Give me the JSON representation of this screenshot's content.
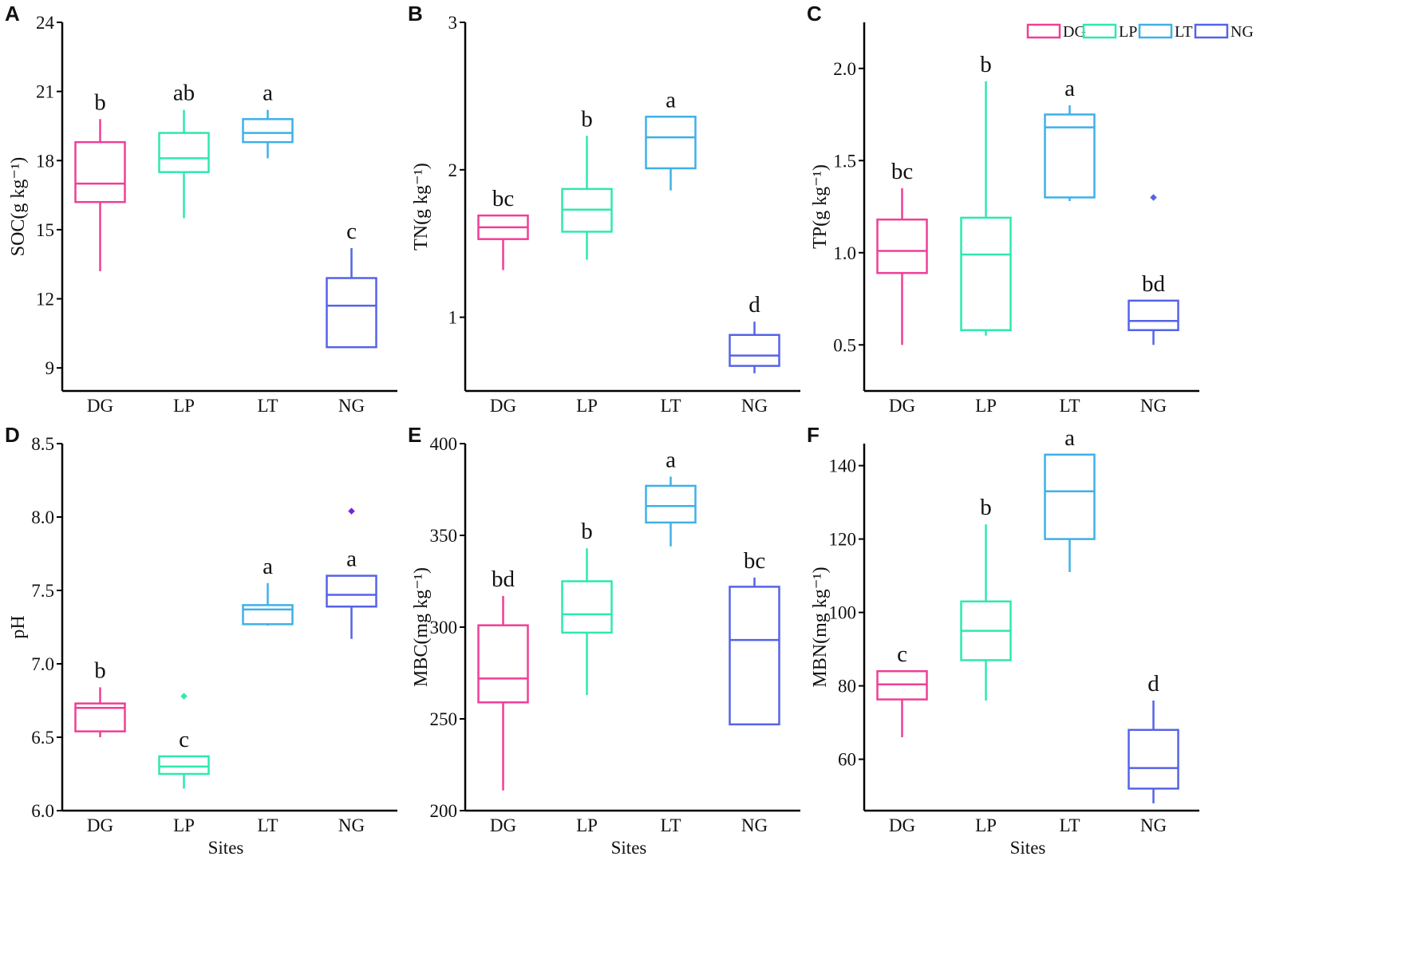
{
  "colors": {
    "DG": "#ef3f97",
    "LP": "#2ee8b0",
    "LT": "#3fb0e8",
    "NG": "#5563e8"
  },
  "legend": [
    "DG",
    "LP",
    "LT",
    "NG"
  ],
  "chart_data": [
    {
      "type": "box",
      "panel": "A",
      "ylabel": "SOC(g kg⁻¹)",
      "xlabel": "",
      "categories": [
        "DG",
        "LP",
        "LT",
        "NG"
      ],
      "ylim": [
        8,
        24
      ],
      "yticks": [
        9,
        12,
        15,
        18,
        21,
        24
      ],
      "tick_decimals": 0,
      "boxes": [
        {
          "min": 13.2,
          "q1": 16.2,
          "median": 17.0,
          "q3": 18.8,
          "max": 19.8,
          "letter": "b"
        },
        {
          "min": 15.5,
          "q1": 17.5,
          "median": 18.1,
          "q3": 19.2,
          "max": 20.2,
          "letter": "ab"
        },
        {
          "min": 18.1,
          "q1": 18.8,
          "median": 19.2,
          "q3": 19.8,
          "max": 20.2,
          "letter": "a"
        },
        {
          "min": 9.9,
          "q1": 9.9,
          "median": 11.7,
          "q3": 12.9,
          "max": 14.2,
          "letter": "c"
        }
      ]
    },
    {
      "type": "box",
      "panel": "B",
      "ylabel": "TN(g kg⁻¹)",
      "xlabel": "",
      "categories": [
        "DG",
        "LP",
        "LT",
        "NG"
      ],
      "ylim": [
        0.5,
        3
      ],
      "yticks": [
        1,
        2,
        3
      ],
      "tick_decimals": 0,
      "boxes": [
        {
          "min": 1.32,
          "q1": 1.53,
          "median": 1.61,
          "q3": 1.69,
          "max": 1.69,
          "letter": "bc"
        },
        {
          "min": 1.39,
          "q1": 1.58,
          "median": 1.73,
          "q3": 1.87,
          "max": 2.23,
          "letter": "b"
        },
        {
          "min": 1.86,
          "q1": 2.01,
          "median": 2.22,
          "q3": 2.36,
          "max": 2.36,
          "letter": "a"
        },
        {
          "min": 0.62,
          "q1": 0.67,
          "median": 0.74,
          "q3": 0.88,
          "max": 0.97,
          "letter": "d"
        }
      ]
    },
    {
      "type": "box",
      "panel": "C",
      "ylabel": "TP(g kg⁻¹)",
      "xlabel": "",
      "categories": [
        "DG",
        "LP",
        "LT",
        "NG"
      ],
      "ylim": [
        0.25,
        2.25
      ],
      "yticks": [
        0.5,
        1.0,
        1.5,
        2.0
      ],
      "tick_decimals": 1,
      "legend": "top-right",
      "boxes": [
        {
          "min": 0.5,
          "q1": 0.89,
          "median": 1.01,
          "q3": 1.18,
          "max": 1.35,
          "letter": "bc"
        },
        {
          "min": 0.55,
          "q1": 0.58,
          "median": 0.99,
          "q3": 1.19,
          "max": 1.93,
          "letter": "b"
        },
        {
          "min": 1.28,
          "q1": 1.3,
          "median": 1.68,
          "q3": 1.75,
          "max": 1.8,
          "letter": "a"
        },
        {
          "min": 0.5,
          "q1": 0.58,
          "median": 0.63,
          "q3": 0.74,
          "max": 0.74,
          "outliers": [
            1.3
          ],
          "letter": "bd"
        }
      ]
    },
    {
      "type": "box",
      "panel": "D",
      "ylabel": "pH",
      "xlabel": "Sites",
      "categories": [
        "DG",
        "LP",
        "LT",
        "NG"
      ],
      "ylim": [
        6,
        8.5
      ],
      "yticks": [
        6.0,
        6.5,
        7.0,
        7.5,
        8.0,
        8.5
      ],
      "tick_decimals": 1,
      "boxes": [
        {
          "min": 6.5,
          "q1": 6.54,
          "median": 6.7,
          "q3": 6.73,
          "max": 6.84,
          "letter": "b"
        },
        {
          "min": 6.15,
          "q1": 6.25,
          "median": 6.3,
          "q3": 6.37,
          "max": 6.37,
          "outliers": [
            6.78
          ],
          "letter": "c"
        },
        {
          "min": 7.26,
          "q1": 7.27,
          "median": 7.37,
          "q3": 7.4,
          "max": 7.55,
          "letter": "a"
        },
        {
          "min": 7.17,
          "q1": 7.39,
          "median": 7.47,
          "q3": 7.6,
          "max": 7.6,
          "outliers": [
            8.04
          ],
          "letter": "a"
        }
      ]
    },
    {
      "type": "box",
      "panel": "E",
      "ylabel": "MBC(mg kg⁻¹)",
      "xlabel": "Sites",
      "categories": [
        "DG",
        "LP",
        "LT",
        "NG"
      ],
      "ylim": [
        200,
        400
      ],
      "yticks": [
        200,
        250,
        300,
        350,
        400
      ],
      "tick_decimals": 0,
      "boxes": [
        {
          "min": 211,
          "q1": 259,
          "median": 272,
          "q3": 301,
          "max": 317,
          "letter": "bd"
        },
        {
          "min": 263,
          "q1": 297,
          "median": 307,
          "q3": 325,
          "max": 343,
          "letter": "b"
        },
        {
          "min": 344,
          "q1": 357,
          "median": 366,
          "q3": 377,
          "max": 382,
          "letter": "a"
        },
        {
          "min": 247,
          "q1": 247,
          "median": 293,
          "q3": 322,
          "max": 327,
          "letter": "bc"
        }
      ]
    },
    {
      "type": "box",
      "panel": "F",
      "ylabel": "MBN(mg kg⁻¹)",
      "xlabel": "Sites",
      "categories": [
        "DG",
        "LP",
        "LT",
        "NG"
      ],
      "ylim": [
        46,
        146
      ],
      "yticks": [
        60,
        80,
        100,
        120,
        140
      ],
      "tick_decimals": 0,
      "boxes": [
        {
          "min": 66,
          "q1": 76.3,
          "median": 80.4,
          "q3": 84,
          "max": 84,
          "letter": "c"
        },
        {
          "min": 76,
          "q1": 87,
          "median": 95,
          "q3": 103,
          "max": 124,
          "letter": "b"
        },
        {
          "min": 111,
          "q1": 120,
          "median": 133,
          "q3": 143,
          "max": 143,
          "letter": "a"
        },
        {
          "min": 48,
          "q1": 52,
          "median": 57.6,
          "q3": 68,
          "max": 76,
          "letter": "d"
        }
      ]
    }
  ]
}
